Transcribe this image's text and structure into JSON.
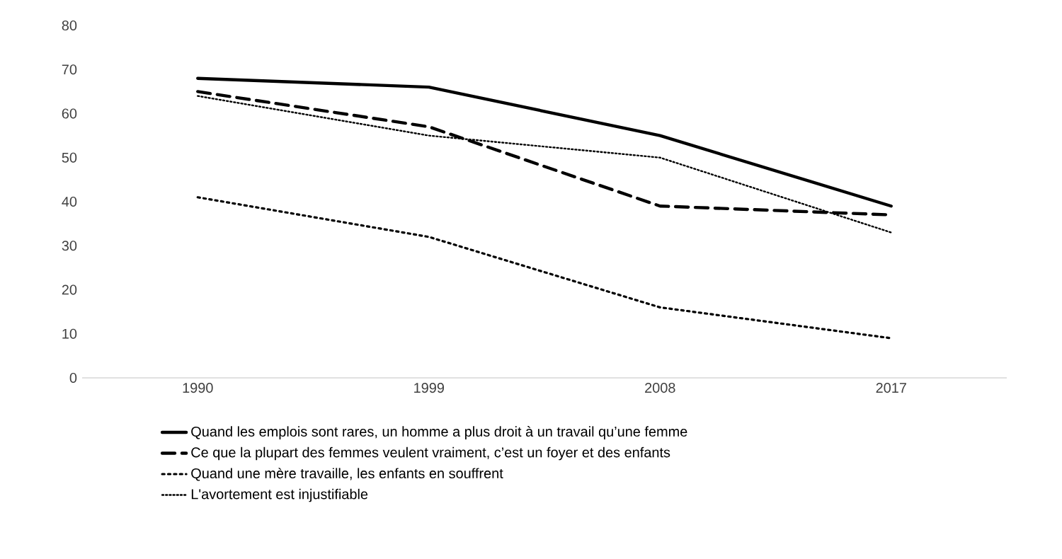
{
  "chart_data": {
    "type": "line",
    "categories": [
      "1990",
      "1999",
      "2008",
      "2017"
    ],
    "series": [
      {
        "name": "Quand les emplois sont rares, un homme a plus droit à un travail qu’une femme",
        "color": "#000000",
        "line_style": "solid",
        "values": [
          68,
          66,
          55,
          39
        ]
      },
      {
        "name": "Ce que la plupart des femmes veulent vraiment, c’est un foyer et des enfants",
        "color": "#000000",
        "line_style": "dashed",
        "values": [
          65,
          57,
          39,
          37
        ]
      },
      {
        "name": "Quand une mère travaille, les enfants en souffrent",
        "color": "#000000",
        "line_style": "dotted",
        "values": [
          41,
          32,
          16,
          9
        ]
      },
      {
        "name": "L'avortement est injustifiable",
        "color": "#000000",
        "line_style": "dotted",
        "values": [
          64,
          55,
          50,
          33
        ]
      }
    ],
    "ylim": [
      0,
      80
    ],
    "yticks": [
      0,
      10,
      20,
      30,
      40,
      50,
      60,
      70,
      80
    ],
    "legend": "bottom",
    "marker": "none"
  }
}
